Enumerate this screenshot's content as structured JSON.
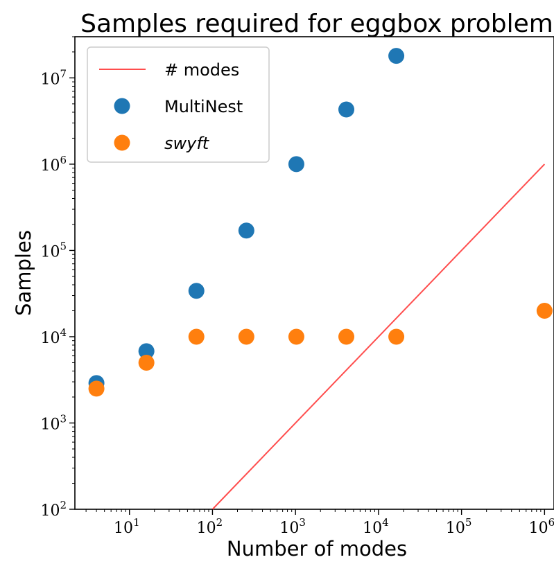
{
  "chart_data": {
    "type": "scatter",
    "title": "Samples required for eggbox problem",
    "xlabel": "Number of modes",
    "ylabel": "Samples",
    "xscale": "log",
    "yscale": "log",
    "xlim": [
      2.2,
      1300000
    ],
    "ylim": [
      100,
      30000000
    ],
    "x_ticks": [
      {
        "base": "10",
        "exp": "1",
        "value": 10
      },
      {
        "base": "10",
        "exp": "2",
        "value": 100
      },
      {
        "base": "10",
        "exp": "3",
        "value": 1000
      },
      {
        "base": "10",
        "exp": "4",
        "value": 10000
      },
      {
        "base": "10",
        "exp": "5",
        "value": 100000
      },
      {
        "base": "10",
        "exp": "6",
        "value": 1000000
      }
    ],
    "y_ticks": [
      {
        "base": "10",
        "exp": "2",
        "value": 100
      },
      {
        "base": "10",
        "exp": "3",
        "value": 1000
      },
      {
        "base": "10",
        "exp": "4",
        "value": 10000
      },
      {
        "base": "10",
        "exp": "5",
        "value": 100000
      },
      {
        "base": "10",
        "exp": "6",
        "value": 1000000
      },
      {
        "base": "10",
        "exp": "7",
        "value": 10000000
      }
    ],
    "grid": false,
    "legend_position": "top-left",
    "series": [
      {
        "name": "# modes",
        "kind": "line",
        "color": "#ff4d4d",
        "points": [
          [
            100,
            100
          ],
          [
            1000000,
            1000000
          ]
        ]
      },
      {
        "name": "MultiNest",
        "kind": "scatter",
        "color": "#1f77b4",
        "points": [
          [
            4,
            2900
          ],
          [
            16,
            6800
          ],
          [
            64,
            34000
          ],
          [
            256,
            170000
          ],
          [
            1024,
            1000000
          ],
          [
            4096,
            4300000
          ],
          [
            16384,
            18000000
          ]
        ]
      },
      {
        "name": "swyft",
        "kind": "scatter",
        "italic": true,
        "color": "#ff7f0e",
        "points": [
          [
            4,
            2500
          ],
          [
            16,
            5000
          ],
          [
            64,
            10000
          ],
          [
            256,
            10000
          ],
          [
            1024,
            10000
          ],
          [
            4096,
            10000
          ],
          [
            16384,
            10000
          ],
          [
            1000000,
            20000
          ]
        ]
      }
    ]
  }
}
